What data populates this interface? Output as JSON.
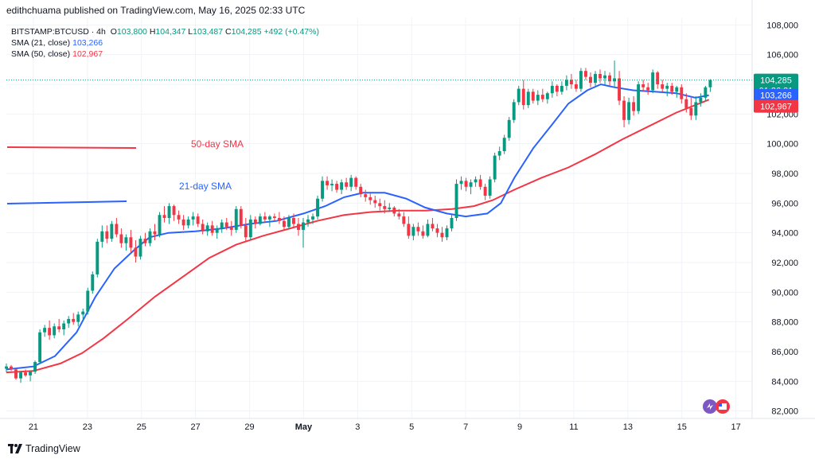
{
  "header": {
    "publisher": "edithchuama published on TradingView.com, May 16, 2025 02:33 UTC"
  },
  "legend": {
    "symbol": "BITSTAMP:BTCUSD · 4h",
    "o_label": "O",
    "o": "103,800",
    "h_label": "H",
    "h": "104,347",
    "l_label": "L",
    "l": "103,487",
    "c_label": "C",
    "c": "104,285",
    "change": "+492 (+0.47%)",
    "sma21_label": "SMA (21, close)",
    "sma21_value": "103,266",
    "sma50_label": "SMA (50, close)",
    "sma50_value": "102,967"
  },
  "annotations": {
    "sma50": "50-day SMA",
    "sma21": "21-day SMA"
  },
  "price_tags": {
    "last": "104,285",
    "countdown": "01:26:31",
    "sma21": "103,266",
    "sma50": "102,967"
  },
  "footer": {
    "brand": "TradingView"
  },
  "colors": {
    "up": "#089981",
    "down": "#f23645",
    "sma21": "#2962ff",
    "sma50": "#f23645",
    "grid": "#f0f3fa",
    "axis_text": "#131722"
  },
  "chart_data": {
    "type": "candlestick",
    "symbol": "BITSTAMP:BTCUSD",
    "interval": "4h",
    "ylim": [
      81500,
      108500
    ],
    "y_ticks": [
      82000,
      84000,
      86000,
      88000,
      90000,
      92000,
      94000,
      96000,
      98000,
      100000,
      102000,
      104000,
      106000,
      108000
    ],
    "y_tick_labels": [
      "82,000",
      "84,000",
      "86,000",
      "88,000",
      "90,000",
      "92,000",
      "94,000",
      "96,000",
      "98,000",
      "100,000",
      "102,000",
      "104,000",
      "106,000",
      "108,000"
    ],
    "x_ticks": [
      21,
      23,
      25,
      27,
      29,
      31,
      33,
      35,
      37,
      39,
      41,
      43,
      45,
      47
    ],
    "x_tick_labels": [
      "21",
      "23",
      "25",
      "27",
      "29",
      "May",
      "3",
      "5",
      "7",
      "9",
      "11",
      "13",
      "15",
      "17"
    ],
    "x_range": [
      20.0,
      47.6
    ],
    "x_unit": "days from April 1, 2025",
    "last_price": 104285,
    "sma21_last": 103266,
    "sma50_last": 102967,
    "candles": [
      [
        84850,
        85200,
        84600,
        85000
      ],
      [
        85000,
        85100,
        84700,
        84800
      ],
      [
        84800,
        84900,
        84100,
        84200
      ],
      [
        84200,
        84700,
        83900,
        84600
      ],
      [
        84600,
        84800,
        84300,
        84400
      ],
      [
        84400,
        84700,
        84000,
        84650
      ],
      [
        84650,
        85400,
        84500,
        85300
      ],
      [
        85300,
        87500,
        85200,
        87300
      ],
      [
        87300,
        87800,
        87000,
        87600
      ],
      [
        87600,
        88100,
        86800,
        87100
      ],
      [
        87100,
        87900,
        86900,
        87700
      ],
      [
        87700,
        88200,
        87300,
        87500
      ],
      [
        87500,
        88100,
        87100,
        87900
      ],
      [
        87900,
        88400,
        87600,
        88200
      ],
      [
        88200,
        88600,
        87800,
        88000
      ],
      [
        88000,
        88700,
        87700,
        88500
      ],
      [
        88500,
        88900,
        88200,
        88700
      ],
      [
        88700,
        90300,
        88500,
        90100
      ],
      [
        90100,
        91400,
        89900,
        91200
      ],
      [
        91200,
        93600,
        91000,
        93400
      ],
      [
        93400,
        94500,
        93000,
        94100
      ],
      [
        94100,
        94500,
        93300,
        93600
      ],
      [
        93600,
        94800,
        93400,
        94600
      ],
      [
        94600,
        95000,
        93700,
        93900
      ],
      [
        93900,
        94300,
        93000,
        93300
      ],
      [
        93300,
        93900,
        92800,
        93700
      ],
      [
        93700,
        94200,
        92700,
        93000
      ],
      [
        93000,
        93500,
        92000,
        92400
      ],
      [
        92400,
        93800,
        92200,
        93600
      ],
      [
        93600,
        94000,
        93100,
        93300
      ],
      [
        93300,
        94300,
        93100,
        94100
      ],
      [
        94100,
        94600,
        93500,
        93900
      ],
      [
        93900,
        95400,
        93700,
        95200
      ],
      [
        95200,
        95800,
        94700,
        95000
      ],
      [
        95000,
        96000,
        94600,
        95800
      ],
      [
        95800,
        95900,
        94800,
        95200
      ],
      [
        95200,
        95500,
        94600,
        94900
      ],
      [
        94900,
        95200,
        94200,
        94500
      ],
      [
        94500,
        95100,
        94300,
        94900
      ],
      [
        94900,
        95400,
        94500,
        95100
      ],
      [
        95100,
        95300,
        94400,
        94600
      ],
      [
        94600,
        94900,
        93900,
        94100
      ],
      [
        94100,
        94700,
        93800,
        94500
      ],
      [
        94500,
        94800,
        93800,
        94000
      ],
      [
        94000,
        94500,
        93600,
        94300
      ],
      [
        94300,
        94900,
        94000,
        94700
      ],
      [
        94700,
        95000,
        94200,
        94400
      ],
      [
        94400,
        94800,
        93800,
        94200
      ],
      [
        94200,
        95800,
        94000,
        95600
      ],
      [
        95600,
        95800,
        94300,
        94500
      ],
      [
        94500,
        95000,
        93400,
        93700
      ],
      [
        93700,
        95200,
        93500,
        94900
      ],
      [
        94900,
        95100,
        94300,
        94600
      ],
      [
        94600,
        95300,
        94500,
        95100
      ],
      [
        95100,
        95400,
        94700,
        94900
      ],
      [
        94900,
        95200,
        94400,
        95100
      ],
      [
        95100,
        95300,
        94800,
        95000
      ],
      [
        95000,
        95400,
        94600,
        94800
      ],
      [
        94800,
        95100,
        94200,
        94400
      ],
      [
        94400,
        95200,
        94300,
        95000
      ],
      [
        95000,
        95300,
        94400,
        94600
      ],
      [
        94600,
        95000,
        93800,
        94200
      ],
      [
        94200,
        95000,
        93000,
        94700
      ],
      [
        94700,
        95200,
        94400,
        94900
      ],
      [
        94900,
        95300,
        94600,
        95100
      ],
      [
        95100,
        96500,
        94900,
        96300
      ],
      [
        96300,
        97800,
        96100,
        97500
      ],
      [
        97500,
        97800,
        96900,
        97200
      ],
      [
        97200,
        97600,
        96800,
        97300
      ],
      [
        97300,
        97500,
        96700,
        96900
      ],
      [
        96900,
        97600,
        96600,
        97400
      ],
      [
        97400,
        97700,
        96900,
        97100
      ],
      [
        97100,
        97900,
        96800,
        97700
      ],
      [
        97700,
        97800,
        96900,
        97100
      ],
      [
        97100,
        97300,
        96400,
        96600
      ],
      [
        96600,
        96900,
        96100,
        96400
      ],
      [
        96400,
        96700,
        95900,
        96200
      ],
      [
        96200,
        96500,
        95700,
        96000
      ],
      [
        96000,
        96300,
        95500,
        95800
      ],
      [
        95800,
        96200,
        95300,
        95600
      ],
      [
        95600,
        96000,
        95400,
        95700
      ],
      [
        95700,
        95800,
        95100,
        95300
      ],
      [
        95300,
        95600,
        94900,
        95100
      ],
      [
        95100,
        95400,
        94400,
        94600
      ],
      [
        94600,
        95100,
        93600,
        93800
      ],
      [
        93800,
        94600,
        93500,
        94400
      ],
      [
        94400,
        94700,
        93800,
        94100
      ],
      [
        94100,
        94500,
        93600,
        93800
      ],
      [
        93800,
        94900,
        93700,
        94600
      ],
      [
        94600,
        95000,
        94100,
        94300
      ],
      [
        94300,
        94600,
        93700,
        94000
      ],
      [
        94000,
        94400,
        93400,
        93700
      ],
      [
        93700,
        94500,
        93500,
        94300
      ],
      [
        94300,
        95200,
        94100,
        95000
      ],
      [
        95000,
        97600,
        94800,
        97300
      ],
      [
        97300,
        97800,
        96900,
        97500
      ],
      [
        97500,
        97700,
        96800,
        97100
      ],
      [
        97100,
        97600,
        96600,
        97400
      ],
      [
        97400,
        97800,
        97100,
        97600
      ],
      [
        97600,
        97900,
        96900,
        97100
      ],
      [
        97100,
        97300,
        96200,
        96500
      ],
      [
        96500,
        97800,
        96300,
        97600
      ],
      [
        97600,
        99400,
        97400,
        99200
      ],
      [
        99200,
        99800,
        98900,
        99500
      ],
      [
        99500,
        100600,
        99300,
        100400
      ],
      [
        100400,
        101800,
        100200,
        101600
      ],
      [
        101600,
        103000,
        101400,
        102800
      ],
      [
        102800,
        103900,
        102600,
        103700
      ],
      [
        103700,
        104300,
        102300,
        102600
      ],
      [
        102600,
        103700,
        102400,
        103500
      ],
      [
        103500,
        103700,
        102700,
        102900
      ],
      [
        102900,
        103600,
        102600,
        103300
      ],
      [
        103300,
        103700,
        102800,
        103000
      ],
      [
        103000,
        103500,
        102700,
        103400
      ],
      [
        103400,
        104200,
        103100,
        103900
      ],
      [
        103900,
        104000,
        103200,
        103500
      ],
      [
        103500,
        104200,
        103300,
        103900
      ],
      [
        103900,
        104600,
        103600,
        104300
      ],
      [
        104300,
        104700,
        103700,
        104000
      ],
      [
        104000,
        104300,
        103500,
        103700
      ],
      [
        103700,
        105100,
        103500,
        104900
      ],
      [
        104900,
        105100,
        104300,
        104500
      ],
      [
        104500,
        104800,
        103800,
        104100
      ],
      [
        104100,
        104900,
        103900,
        104700
      ],
      [
        104700,
        105000,
        104100,
        104400
      ],
      [
        104400,
        104900,
        103900,
        104600
      ],
      [
        104600,
        104800,
        103900,
        104200
      ],
      [
        104200,
        105600,
        103800,
        104400
      ],
      [
        104400,
        104900,
        102600,
        102900
      ],
      [
        102900,
        103200,
        101100,
        101600
      ],
      [
        101600,
        103100,
        101300,
        102800
      ],
      [
        102800,
        103200,
        101900,
        102200
      ],
      [
        102200,
        104200,
        102000,
        104000
      ],
      [
        104000,
        104300,
        103500,
        103800
      ],
      [
        103800,
        104100,
        103300,
        103600
      ],
      [
        103600,
        105000,
        103400,
        104800
      ],
      [
        104800,
        104900,
        103700,
        104000
      ],
      [
        104000,
        104300,
        103500,
        103700
      ],
      [
        103700,
        104100,
        103200,
        103900
      ],
      [
        103900,
        104100,
        103300,
        103500
      ],
      [
        103500,
        103900,
        103100,
        103800
      ],
      [
        103800,
        104000,
        102700,
        103000
      ],
      [
        103000,
        103400,
        102100,
        102400
      ],
      [
        102400,
        103100,
        101600,
        101900
      ],
      [
        101900,
        103200,
        101600,
        102800
      ],
      [
        102800,
        103400,
        102500,
        103100
      ],
      [
        103100,
        103900,
        102900,
        103800
      ],
      [
        103800,
        104347,
        103487,
        104285
      ]
    ],
    "sma21": [
      [
        20.0,
        84800
      ],
      [
        21.0,
        85000
      ],
      [
        21.8,
        85700
      ],
      [
        22.6,
        87300
      ],
      [
        23.3,
        89700
      ],
      [
        24.0,
        91600
      ],
      [
        24.7,
        92800
      ],
      [
        25.3,
        93700
      ],
      [
        26.0,
        94000
      ],
      [
        27.0,
        94100
      ],
      [
        28.0,
        94300
      ],
      [
        29.0,
        94600
      ],
      [
        30.0,
        94800
      ],
      [
        31.0,
        95300
      ],
      [
        31.8,
        95800
      ],
      [
        32.5,
        96400
      ],
      [
        33.2,
        96700
      ],
      [
        34.0,
        96700
      ],
      [
        34.8,
        96300
      ],
      [
        35.5,
        95700
      ],
      [
        36.3,
        95300
      ],
      [
        37.0,
        95100
      ],
      [
        37.8,
        95300
      ],
      [
        38.3,
        96000
      ],
      [
        38.8,
        97700
      ],
      [
        39.5,
        99700
      ],
      [
        40.2,
        101300
      ],
      [
        40.8,
        102700
      ],
      [
        41.5,
        103600
      ],
      [
        42.0,
        104000
      ],
      [
        42.5,
        103800
      ],
      [
        43.2,
        103600
      ],
      [
        44.0,
        103500
      ],
      [
        44.8,
        103400
      ],
      [
        45.5,
        103100
      ],
      [
        46.0,
        103266
      ]
    ],
    "sma50": [
      [
        20.0,
        84600
      ],
      [
        21.0,
        84700
      ],
      [
        22.0,
        85200
      ],
      [
        22.8,
        85900
      ],
      [
        23.6,
        86900
      ],
      [
        24.5,
        88200
      ],
      [
        25.5,
        89700
      ],
      [
        26.5,
        91000
      ],
      [
        27.5,
        92300
      ],
      [
        28.5,
        93200
      ],
      [
        29.5,
        93800
      ],
      [
        30.5,
        94300
      ],
      [
        31.5,
        94800
      ],
      [
        32.5,
        95200
      ],
      [
        33.5,
        95400
      ],
      [
        34.5,
        95500
      ],
      [
        35.5,
        95500
      ],
      [
        36.5,
        95600
      ],
      [
        37.3,
        95800
      ],
      [
        38.0,
        96200
      ],
      [
        38.8,
        96900
      ],
      [
        39.8,
        97700
      ],
      [
        40.8,
        98400
      ],
      [
        41.8,
        99300
      ],
      [
        42.8,
        100300
      ],
      [
        43.8,
        101200
      ],
      [
        44.8,
        102100
      ],
      [
        45.5,
        102600
      ],
      [
        46.0,
        102967
      ]
    ]
  }
}
